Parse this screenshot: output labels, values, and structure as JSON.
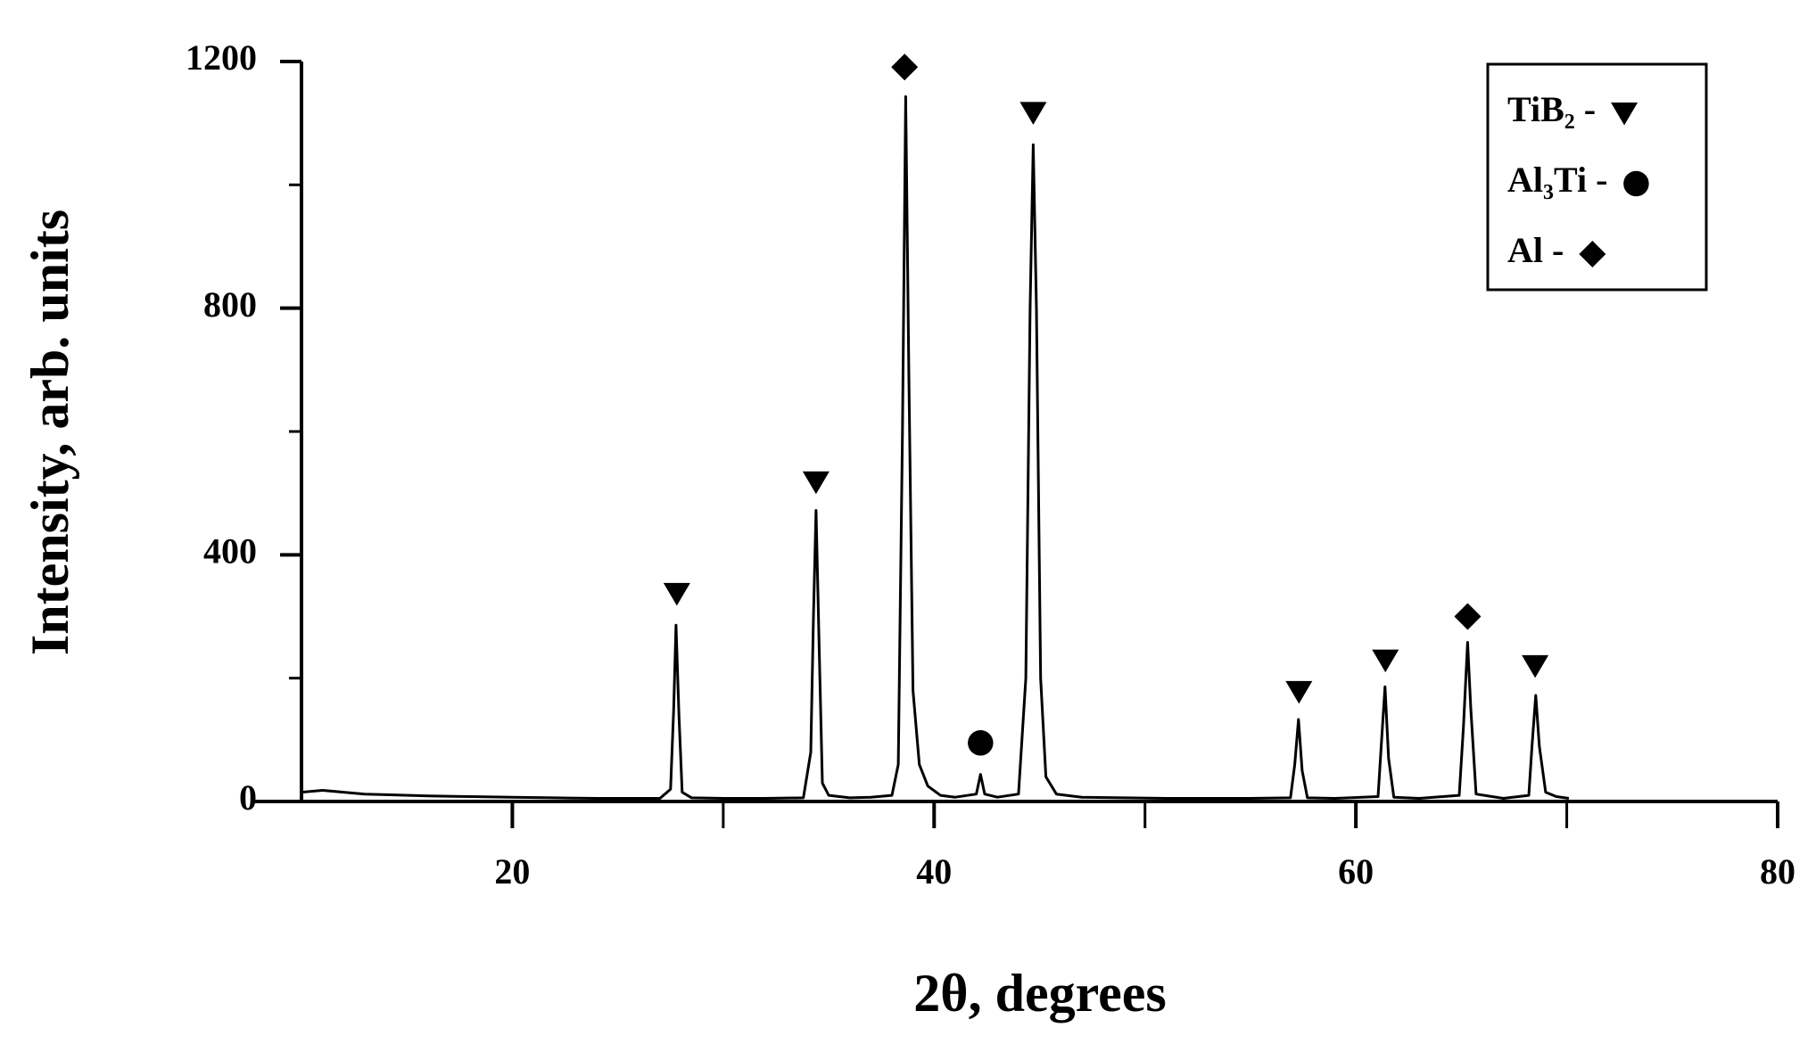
{
  "chart_data": {
    "type": "line",
    "xlabel": "2θ, degrees",
    "ylabel": "Intensity, arb. units",
    "xlim": [
      10,
      80
    ],
    "ylim": [
      0,
      1200
    ],
    "xticks": [
      20,
      40,
      60,
      80
    ],
    "xminor": [
      30,
      50,
      70
    ],
    "yticks": [
      0,
      400,
      800,
      1200
    ],
    "yminor": [
      200,
      600,
      1000
    ],
    "color": "#000000",
    "legend": "upper right",
    "x": [
      10,
      11,
      12,
      13,
      14,
      16,
      18,
      20,
      22,
      24,
      26,
      27,
      27.5,
      27.65,
      27.76,
      27.9,
      28.05,
      28.5,
      30,
      32,
      33.8,
      34.15,
      34.28,
      34.4,
      34.55,
      34.7,
      35,
      36,
      37,
      38,
      38.3,
      38.5,
      38.65,
      38.8,
      39,
      39.3,
      39.7,
      40.3,
      41,
      42,
      42.2,
      42.4,
      43,
      44,
      44.35,
      44.55,
      44.7,
      44.85,
      45.05,
      45.3,
      45.8,
      47,
      49,
      51,
      53,
      55,
      56.9,
      57.1,
      57.28,
      57.45,
      57.7,
      59,
      61.05,
      61.22,
      61.38,
      61.55,
      61.8,
      63,
      64.9,
      65.1,
      65.3,
      65.45,
      65.7,
      67,
      68.2,
      68.35,
      68.53,
      68.7,
      69,
      69.5,
      70.1
    ],
    "values": [
      15,
      18,
      15,
      12,
      11,
      9,
      8,
      7,
      6,
      5,
      5,
      5,
      20,
      150,
      286,
      140,
      15,
      6,
      5,
      5,
      6,
      80,
      300,
      472,
      250,
      30,
      10,
      6,
      7,
      10,
      60,
      600,
      1143,
      700,
      180,
      60,
      25,
      10,
      7,
      12,
      44,
      12,
      7,
      12,
      200,
      800,
      1065,
      800,
      200,
      40,
      12,
      7,
      6,
      5,
      5,
      5,
      6,
      60,
      133,
      50,
      6,
      5,
      8,
      100,
      186,
      70,
      7,
      5,
      10,
      120,
      258,
      150,
      12,
      5,
      10,
      90,
      172,
      90,
      15,
      8,
      5
    ],
    "series": [
      {
        "name": "TiB₂ -",
        "marker": "triangle",
        "color": "#000000",
        "x": [
          27.8,
          34.4,
          44.7,
          57.3,
          61.4,
          68.5
        ],
        "values": [
          337,
          518,
          1117,
          178,
          229,
          220
        ]
      },
      {
        "name": "Al₃Ti -",
        "marker": "circle",
        "color": "#000000",
        "x": [
          42.2
        ],
        "values": [
          95
        ]
      },
      {
        "name": "Al -",
        "marker": "diamond",
        "color": "#000000",
        "x": [
          38.6,
          65.3
        ],
        "values": [
          1191,
          300
        ]
      }
    ]
  }
}
